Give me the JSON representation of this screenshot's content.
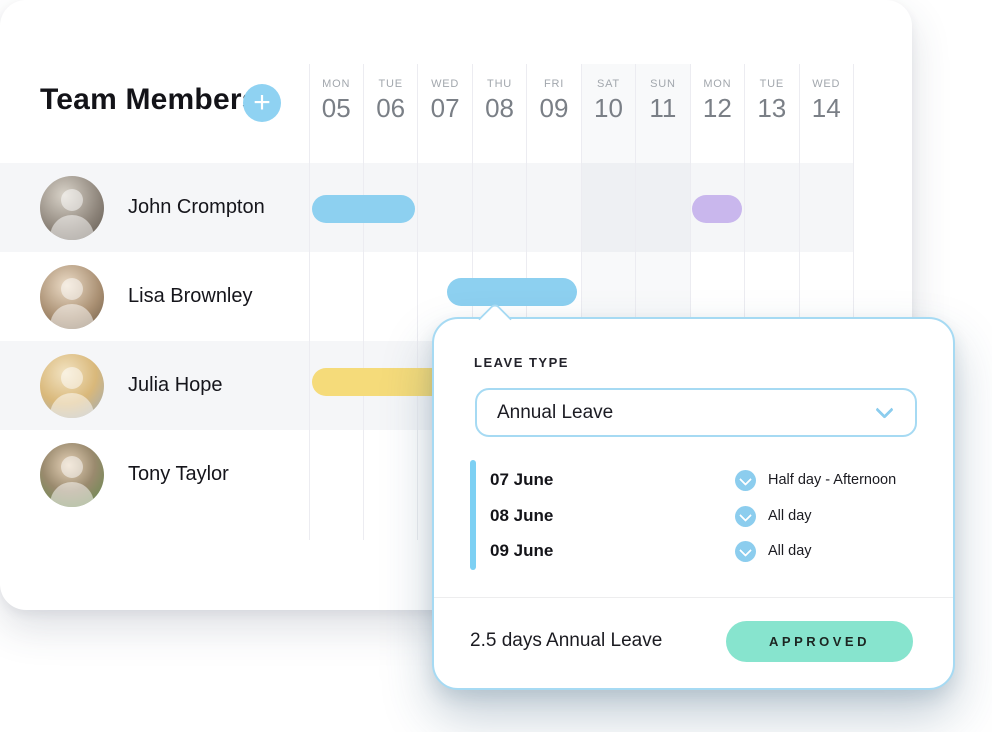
{
  "header": {
    "title": "Team Members",
    "add_button_label": "+"
  },
  "calendar": {
    "days": [
      {
        "name": "MON",
        "date": "05",
        "weekend": false
      },
      {
        "name": "TUE",
        "date": "06",
        "weekend": false
      },
      {
        "name": "WED",
        "date": "07",
        "weekend": false
      },
      {
        "name": "THU",
        "date": "08",
        "weekend": false
      },
      {
        "name": "FRI",
        "date": "09",
        "weekend": false
      },
      {
        "name": "SAT",
        "date": "10",
        "weekend": true
      },
      {
        "name": "SUN",
        "date": "11",
        "weekend": true
      },
      {
        "name": "MON",
        "date": "12",
        "weekend": false
      },
      {
        "name": "TUE",
        "date": "13",
        "weekend": false
      },
      {
        "name": "WED",
        "date": "14",
        "weekend": false
      }
    ],
    "members": [
      {
        "name": "John Crompton"
      },
      {
        "name": "Lisa Brownley"
      },
      {
        "name": "Julia Hope"
      },
      {
        "name": "Tony Taylor"
      }
    ],
    "leave_bars": [
      {
        "member": "John Crompton",
        "from_day": "05",
        "to_day": "06",
        "color": "#8DD0F0"
      },
      {
        "member": "John Crompton",
        "from_day": "12",
        "to_day": "12",
        "color": "#C9B7ED"
      },
      {
        "member": "Lisa Brownley",
        "from_day": "07 (afternoon)",
        "to_day": "09",
        "color": "#8DD0F0"
      },
      {
        "member": "Julia Hope",
        "from_day": "05",
        "to_day": "07+",
        "color": "#F5DB7A"
      }
    ]
  },
  "popup": {
    "leave_type_label": "LEAVE TYPE",
    "leave_type_value": "Annual Leave",
    "entries": [
      {
        "date": "07 June",
        "option": "Half day - Afternoon"
      },
      {
        "date": "08 June",
        "option": "All day"
      },
      {
        "date": "09 June",
        "option": "All day"
      }
    ],
    "summary": "2.5 days Annual Leave",
    "status_label": "APPROVED"
  },
  "colors": {
    "annual_leave_bar": "#8DD0F0",
    "other_leave_bar": "#C9B7ED",
    "pending_leave_bar": "#F5DB7A",
    "approved_badge": "#87E4CE",
    "popup_border": "#A6DAF3",
    "add_button": "#8FD2F2"
  }
}
